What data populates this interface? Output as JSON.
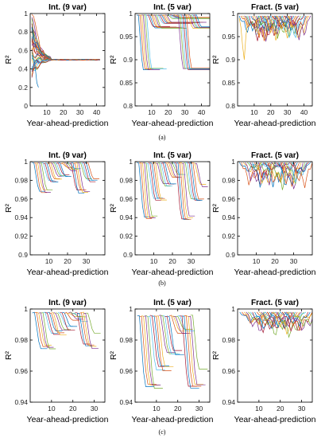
{
  "palette": [
    "#0072BD",
    "#D95319",
    "#EDB120",
    "#7E2F8E",
    "#77AC30",
    "#4DBEEE",
    "#A2142F"
  ],
  "figure": {
    "panel_labels": [
      "(a)",
      "(b)",
      "(c)"
    ]
  },
  "chart_data": [
    {
      "type": "line",
      "row": 0,
      "col": 0,
      "title": "Int. (9 var)",
      "xlabel": "Year-ahead-prediction",
      "ylabel": "R²",
      "xlim": [
        0,
        45
      ],
      "ylim": [
        0,
        1
      ],
      "xticks": [
        10,
        20,
        30,
        40
      ],
      "yticks": [
        0,
        0.2,
        0.4,
        0.6,
        0.8,
        1
      ],
      "ytick_labels": [
        "0",
        "0.2",
        "0.4",
        "0.6",
        "0.8",
        "1"
      ],
      "pattern": "converge",
      "params": {
        "n": 30,
        "xlen": 42,
        "conv": 0.5,
        "startRange": [
          0.3,
          0.99
        ],
        "decay": 4,
        "osc": 0.06,
        "special": [
          {
            "ci": 0,
            "x": [
              1,
              2,
              3,
              4,
              5
            ],
            "y": [
              0.52,
              0.5,
              0.42,
              0.25,
              0.2
            ]
          },
          {
            "ci": 1,
            "x": [
              1,
              2,
              3,
              4,
              5,
              6,
              7,
              8,
              9
            ],
            "y": [
              0.99,
              0.97,
              0.9,
              0.8,
              0.74,
              0.63,
              0.58,
              0.6,
              0.5
            ]
          }
        ]
      }
    },
    {
      "type": "line",
      "row": 0,
      "col": 1,
      "title": "Int. (5 var)",
      "xlabel": "Year-ahead-prediction",
      "ylabel": "R²",
      "xlim": [
        0,
        45
      ],
      "ylim": [
        0.8,
        1
      ],
      "xticks": [
        10,
        20,
        30,
        40
      ],
      "yticks": [
        0.8,
        0.85,
        0.9,
        0.95,
        1
      ],
      "ytick_labels": [
        "0.8",
        "0.85",
        "0.9",
        "0.95",
        "1"
      ],
      "pattern": "step",
      "params": {
        "n": 36,
        "x0": 1,
        "xstart_step": 1,
        "len0": 8,
        "len_step": 1,
        "floors": [
          0.88,
          0.97,
          0.98,
          0.99
        ],
        "floor_steps": 6,
        "top": 0.997
      }
    },
    {
      "type": "line",
      "row": 0,
      "col": 2,
      "title": "Fract. (5 var)",
      "xlabel": "Year-ahead-prediction",
      "ylabel": "R²",
      "xlim": [
        0,
        45
      ],
      "ylim": [
        0.8,
        1
      ],
      "xticks": [
        10,
        20,
        30,
        40
      ],
      "yticks": [
        0.8,
        0.85,
        0.9,
        0.95,
        1
      ],
      "ytick_labels": [
        "0.8",
        "0.85",
        "0.9",
        "0.95",
        "1"
      ],
      "pattern": "dips",
      "params": {
        "n": 32,
        "x0": 1,
        "xstart_step": 1,
        "len": 12,
        "base": 0.995,
        "depthRange": [
          0.02,
          0.06
        ],
        "special": [
          {
            "ci": 2,
            "x": [
              1,
              2,
              3,
              4,
              5,
              6
            ],
            "y": [
              0.99,
              0.97,
              0.93,
              0.9,
              0.95,
              0.98
            ]
          }
        ]
      }
    },
    {
      "type": "line",
      "row": 1,
      "col": 0,
      "title": "Int. (9 var)",
      "xlabel": "Year-ahead-prediction",
      "ylabel": "R²",
      "xlim": [
        0,
        40
      ],
      "ylim": [
        0.9,
        1
      ],
      "xticks": [
        10,
        20,
        30
      ],
      "yticks": [
        0.9,
        0.92,
        0.94,
        0.96,
        0.98,
        1
      ],
      "ytick_labels": [
        "0.9",
        "0.92",
        "0.94",
        "0.96",
        "0.98",
        "1"
      ],
      "pattern": "step",
      "params": {
        "n": 30,
        "x0": 1,
        "xstart_step": 1,
        "len0": 7,
        "len_step": 0,
        "floors": [
          0.968,
          0.98,
          0.986,
          0.992
        ],
        "floor_steps": 5,
        "top": 0.999
      }
    },
    {
      "type": "line",
      "row": 1,
      "col": 1,
      "title": "Int. (5 var)",
      "xlabel": "Year-ahead-prediction",
      "ylabel": "R²",
      "xlim": [
        0,
        40
      ],
      "ylim": [
        0.9,
        1
      ],
      "xticks": [
        10,
        20,
        30
      ],
      "yticks": [
        0.9,
        0.92,
        0.94,
        0.96,
        0.98,
        1
      ],
      "ytick_labels": [
        "0.9",
        "0.92",
        "0.94",
        "0.96",
        "0.98",
        "1"
      ],
      "pattern": "step",
      "params": {
        "n": 32,
        "x0": 1,
        "xstart_step": 1,
        "len0": 7,
        "len_step": 0,
        "floors": [
          0.94,
          0.96,
          0.975,
          0.985
        ],
        "floor_steps": 5,
        "top": 0.999
      }
    },
    {
      "type": "line",
      "row": 1,
      "col": 2,
      "title": "Fract. (5 var)",
      "xlabel": "Year-ahead-prediction",
      "ylabel": "R²",
      "xlim": [
        0,
        40
      ],
      "ylim": [
        0.9,
        1
      ],
      "xticks": [
        10,
        20,
        30
      ],
      "yticks": [
        0.9,
        0.92,
        0.94,
        0.96,
        0.98,
        1
      ],
      "ytick_labels": [
        "0.9",
        "0.92",
        "0.94",
        "0.96",
        "0.98",
        "1"
      ],
      "pattern": "dips",
      "params": {
        "n": 30,
        "x0": 1,
        "xstart_step": 1,
        "len": 10,
        "base": 0.999,
        "depthRange": [
          0.004,
          0.03
        ]
      }
    },
    {
      "type": "line",
      "row": 2,
      "col": 0,
      "title": "Int. (9 var)",
      "xlabel": "Year-ahead-prediction",
      "ylabel": "R²",
      "xlim": [
        0,
        35
      ],
      "ylim": [
        0.94,
        1
      ],
      "xticks": [
        10,
        20,
        30
      ],
      "yticks": [
        0.94,
        0.96,
        0.98,
        1
      ],
      "ytick_labels": [
        "0.94",
        "0.96",
        "0.98",
        "1"
      ],
      "pattern": "step",
      "params": {
        "n": 26,
        "x0": 1,
        "xstart_step": 1,
        "len0": 7,
        "len_step": 0,
        "floors": [
          0.976,
          0.984,
          0.988,
          0.994
        ],
        "floor_steps": 5,
        "top": 0.998
      }
    },
    {
      "type": "line",
      "row": 2,
      "col": 1,
      "title": "Int. (5 var)",
      "xlabel": "Year-ahead-prediction",
      "ylabel": "R²",
      "xlim": [
        0,
        35
      ],
      "ylim": [
        0.94,
        1
      ],
      "xticks": [
        10,
        20,
        30
      ],
      "yticks": [
        0.94,
        0.96,
        0.98,
        1
      ],
      "ytick_labels": [
        "0.94",
        "0.96",
        "0.98",
        "1"
      ],
      "pattern": "step",
      "params": {
        "n": 26,
        "x0": 1,
        "xstart_step": 1,
        "len0": 8,
        "len_step": 0,
        "floors": [
          0.95,
          0.962,
          0.972,
          0.985
        ],
        "floor_steps": 5,
        "top": 0.996
      }
    },
    {
      "type": "line",
      "row": 2,
      "col": 2,
      "title": "Fract. (5 var)",
      "xlabel": "Year-ahead-prediction",
      "ylabel": "R²",
      "xlim": [
        0,
        35
      ],
      "ylim": [
        0.94,
        1
      ],
      "xticks": [
        10,
        20,
        30
      ],
      "yticks": [
        0.94,
        0.96,
        0.98,
        1
      ],
      "ytick_labels": [
        "0.94",
        "0.96",
        "0.98",
        "1"
      ],
      "pattern": "dips",
      "params": {
        "n": 26,
        "x0": 1,
        "xstart_step": 1,
        "len": 12,
        "base": 0.998,
        "depthRange": [
          0.005,
          0.017
        ]
      }
    }
  ]
}
